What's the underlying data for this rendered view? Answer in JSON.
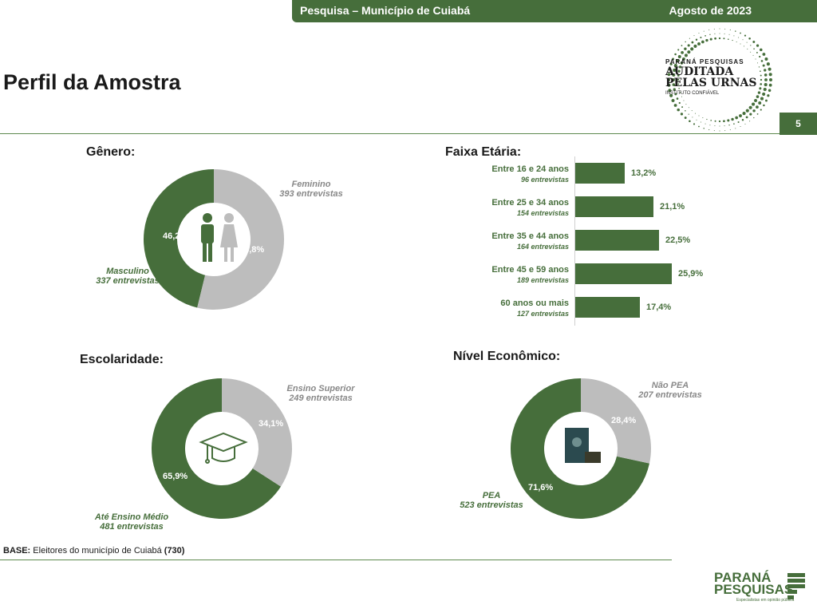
{
  "header": {
    "left_title": "Pesquisa – Município de Cuiabá",
    "right_date": "Agosto de 2023"
  },
  "page_title": "Perfil da Amostra",
  "page_number": "5",
  "seal": {
    "line1": "PARANÁ PESQUISAS",
    "line2": "AUDITADA",
    "line3": "PELAS URNAS",
    "line4": "INSTITUTO CONFIÁVEL"
  },
  "colors": {
    "green": "#466e3b",
    "gray": "#bdbdbd",
    "line": "#5f8a4f"
  },
  "genero": {
    "title": "Gênero:",
    "masc_label": "Masculino",
    "masc_count": "337 entrevistas",
    "fem_label": "Feminino",
    "fem_count": "393 entrevistas",
    "masc_pct": "46,2%",
    "fem_pct": "53,8%",
    "icon": "people-icon"
  },
  "faixa": {
    "title": "Faixa Etária:",
    "rows": [
      {
        "label": "Entre 16 e 24 anos",
        "sub": "96 entrevistas",
        "pct": "13,2%"
      },
      {
        "label": "Entre 25 e 34 anos",
        "sub": "154 entrevistas",
        "pct": "21,1%"
      },
      {
        "label": "Entre 35 e 44 anos",
        "sub": "164 entrevistas",
        "pct": "22,5%"
      },
      {
        "label": "Entre 45 e 59 anos",
        "sub": "189 entrevistas",
        "pct": "25,9%"
      },
      {
        "label": "60 anos ou mais",
        "sub": "127 entrevistas",
        "pct": "17,4%"
      }
    ]
  },
  "escolaridade": {
    "title": "Escolaridade:",
    "sup_label": "Ensino Superior",
    "sup_count": "249 entrevistas",
    "med_label": "Até Ensino Médio",
    "med_count": "481 entrevistas",
    "sup_pct": "34,1%",
    "med_pct": "65,9%",
    "icon": "graduation-cap-icon"
  },
  "nivel": {
    "title": "Nível Econômico:",
    "npea_label": "Não PEA",
    "npea_count": "207 entrevistas",
    "pea_label": "PEA",
    "pea_count": "523 entrevistas",
    "npea_pct": "28,4%",
    "pea_pct": "71,6%",
    "icon": "work-card-icon"
  },
  "base": {
    "prefix": "BASE:",
    "text": " Eleitores do município de Cuiabá ",
    "total": "(730)"
  },
  "logo": {
    "line1": "PARANÁ",
    "line2": "PESQUISAS",
    "tagline": "Especialistas em opinião pública"
  },
  "chart_data": [
    {
      "type": "pie",
      "title": "Gênero:",
      "categories": [
        "Masculino",
        "Feminino"
      ],
      "values": [
        46.2,
        53.8
      ],
      "counts": [
        337,
        393
      ]
    },
    {
      "type": "bar",
      "title": "Faixa Etária:",
      "categories": [
        "Entre 16 e 24 anos",
        "Entre 25 e 34 anos",
        "Entre 35 e 44 anos",
        "Entre 45 e 59 anos",
        "60 anos ou mais"
      ],
      "values": [
        13.2,
        21.1,
        22.5,
        25.9,
        17.4
      ],
      "counts": [
        96,
        154,
        164,
        189,
        127
      ]
    },
    {
      "type": "pie",
      "title": "Escolaridade:",
      "categories": [
        "Até Ensino Médio",
        "Ensino Superior"
      ],
      "values": [
        65.9,
        34.1
      ],
      "counts": [
        481,
        249
      ]
    },
    {
      "type": "pie",
      "title": "Nível Econômico:",
      "categories": [
        "PEA",
        "Não PEA"
      ],
      "values": [
        71.6,
        28.4
      ],
      "counts": [
        523,
        207
      ]
    }
  ]
}
